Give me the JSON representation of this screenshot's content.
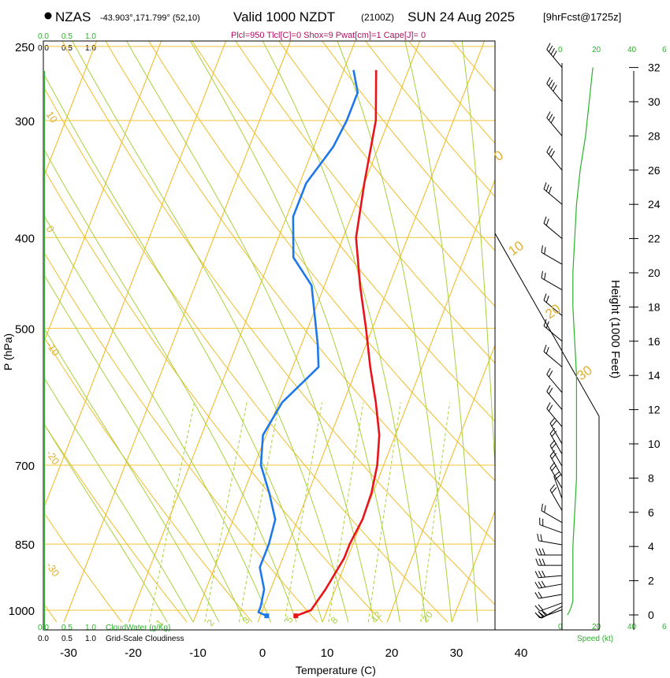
{
  "header": {
    "station": "NZAS",
    "location": "-43.903°,171.799° (52,10)",
    "valid": "Valid 1000 NZDT",
    "utc": "(2100Z)",
    "date": "SUN 24 Aug 2025",
    "forecast": "[9hrFcst@1725z]",
    "params": "Plcl=950 Tlcl[C]=0 Shox=9 Pwat[cm]=1 Cape[J]= 0"
  },
  "labels": {
    "pressure_axis": "P (hPa)",
    "temperature_axis": "Temperature (C)",
    "height_axis": "Height (1000 Feet)",
    "speed_axis": "Speed (kt)",
    "cloudwater": "CloudWater (g/Kg)",
    "cloudiness": "Grid-Scale Cloudiness",
    "cw_ticks_top": [
      "0.0",
      "0.5",
      "1.0"
    ],
    "cloud_ticks_top": [
      "0.0",
      "0.5",
      "1.0"
    ],
    "cw_ticks_bottom": [
      "0.0",
      "0.5",
      "1.0"
    ],
    "cloud_ticks_bottom": [
      "0.0",
      "0.5",
      "1.0"
    ],
    "speed_ticks_top": [
      "0",
      "20",
      "40",
      "6"
    ],
    "speed_ticks_bottom": [
      "0",
      "20",
      "40",
      "6"
    ]
  },
  "colors": {
    "temperature": "#e8141a",
    "dewpoint": "#1f78ea",
    "isotherm": "#f0bd2a",
    "dry_adiabat": "#f0bd2a",
    "moist_adiabat": "#a8d13a",
    "mixing_ratio": "#a8d13a",
    "cloud": "#29b229",
    "param_text": "#b01060"
  },
  "chart_data": {
    "type": "line",
    "title": "NZAS Valid 1000 NZDT (2100Z) SUN 24 Aug 2025",
    "xlabel": "Temperature (C)",
    "ylabel": "P (hPa)",
    "xlim": [
      -33,
      36
    ],
    "ylim": [
      1020,
      250
    ],
    "x_ticks": [
      -30,
      -20,
      -10,
      0,
      10,
      20,
      30,
      40
    ],
    "p_ticks": [
      1000,
      850,
      700,
      500,
      400,
      300,
      250
    ],
    "isotherm_labels": [
      10,
      0,
      -10,
      -20,
      -30
    ],
    "adiabat_labels": [
      0,
      10,
      20,
      30
    ],
    "mixing_ratio_labels": [
      "1",
      "2",
      "3",
      "5",
      "8",
      "12",
      "20"
    ],
    "height_ticks": [
      0,
      2,
      4,
      6,
      8,
      10,
      12,
      14,
      16,
      18,
      20,
      22,
      24,
      26,
      28,
      30,
      32
    ],
    "series": [
      {
        "name": "Temperature",
        "points": [
          [
            5.5,
            1014
          ],
          [
            7.5,
            1000
          ],
          [
            8.5,
            950
          ],
          [
            9.5,
            880
          ],
          [
            9.5,
            850
          ],
          [
            10,
            800
          ],
          [
            9.8,
            750
          ],
          [
            9,
            700
          ],
          [
            7.5,
            650
          ],
          [
            5,
            600
          ],
          [
            2,
            550
          ],
          [
            -1,
            500
          ],
          [
            -4.5,
            450
          ],
          [
            -8,
            400
          ],
          [
            -10,
            350
          ],
          [
            -12,
            300
          ],
          [
            -15,
            265
          ]
        ]
      },
      {
        "name": "Dewpoint",
        "points": [
          [
            1,
            1014
          ],
          [
            -0.5,
            1005
          ],
          [
            -0.5,
            990
          ],
          [
            -1,
            950
          ],
          [
            -3,
            900
          ],
          [
            -3,
            850
          ],
          [
            -3.5,
            800
          ],
          [
            -6,
            750
          ],
          [
            -9,
            700
          ],
          [
            -10.5,
            650
          ],
          [
            -9.5,
            600
          ],
          [
            -6,
            550
          ],
          [
            -7.5,
            520
          ],
          [
            -12,
            450
          ],
          [
            -16.5,
            420
          ],
          [
            -19,
            380
          ],
          [
            -19,
            350
          ],
          [
            -17,
            320
          ],
          [
            -16.5,
            300
          ],
          [
            -16.5,
            280
          ],
          [
            -18.5,
            265
          ]
        ]
      },
      {
        "name": "Wind speed (kt)",
        "points": [
          [
            3,
            0
          ],
          [
            4.5,
            0.3
          ],
          [
            6,
            0.8
          ],
          [
            6,
            2
          ],
          [
            6,
            4
          ],
          [
            7,
            6
          ],
          [
            8,
            8
          ],
          [
            8,
            10
          ],
          [
            8,
            12
          ],
          [
            8,
            14
          ],
          [
            7,
            16
          ],
          [
            6,
            18
          ],
          [
            6,
            20
          ],
          [
            7,
            22
          ],
          [
            8,
            24
          ],
          [
            10,
            26
          ],
          [
            13,
            28
          ],
          [
            15,
            30
          ],
          [
            17,
            32
          ]
        ]
      }
    ],
    "winds": [
      {
        "h": 0.3,
        "dir": 250,
        "spd": 25
      },
      {
        "h": 0.5,
        "dir": 240,
        "spd": 25
      },
      {
        "h": 0.7,
        "dir": 250,
        "spd": 20
      },
      {
        "h": 1.2,
        "dir": 260,
        "spd": 20
      },
      {
        "h": 1.8,
        "dir": 260,
        "spd": 25
      },
      {
        "h": 2.3,
        "dir": 265,
        "spd": 25
      },
      {
        "h": 2.9,
        "dir": 270,
        "spd": 25
      },
      {
        "h": 3.5,
        "dir": 270,
        "spd": 25
      },
      {
        "h": 4.1,
        "dir": 280,
        "spd": 20
      },
      {
        "h": 4.8,
        "dir": 290,
        "spd": 20
      },
      {
        "h": 5.4,
        "dir": 300,
        "spd": 15
      },
      {
        "h": 6.1,
        "dir": 330,
        "spd": 15
      },
      {
        "h": 6.8,
        "dir": 340,
        "spd": 15
      },
      {
        "h": 7.4,
        "dir": 330,
        "spd": 20
      },
      {
        "h": 8.1,
        "dir": 330,
        "spd": 20
      },
      {
        "h": 8.7,
        "dir": 330,
        "spd": 20
      },
      {
        "h": 9.4,
        "dir": 330,
        "spd": 20
      },
      {
        "h": 10,
        "dir": 330,
        "spd": 20
      },
      {
        "h": 11,
        "dir": 320,
        "spd": 20
      },
      {
        "h": 12,
        "dir": 320,
        "spd": 20
      },
      {
        "h": 13,
        "dir": 320,
        "spd": 20
      },
      {
        "h": 14.5,
        "dir": 310,
        "spd": 20
      },
      {
        "h": 16,
        "dir": 310,
        "spd": 20
      },
      {
        "h": 17.5,
        "dir": 310,
        "spd": 20
      },
      {
        "h": 19,
        "dir": 300,
        "spd": 20
      },
      {
        "h": 20.5,
        "dir": 300,
        "spd": 20
      },
      {
        "h": 22,
        "dir": 310,
        "spd": 20
      },
      {
        "h": 24,
        "dir": 310,
        "spd": 25
      },
      {
        "h": 26,
        "dir": 320,
        "spd": 30
      },
      {
        "h": 28,
        "dir": 320,
        "spd": 30
      },
      {
        "h": 30,
        "dir": 320,
        "spd": 35
      },
      {
        "h": 32,
        "dir": 320,
        "spd": 35
      }
    ]
  }
}
